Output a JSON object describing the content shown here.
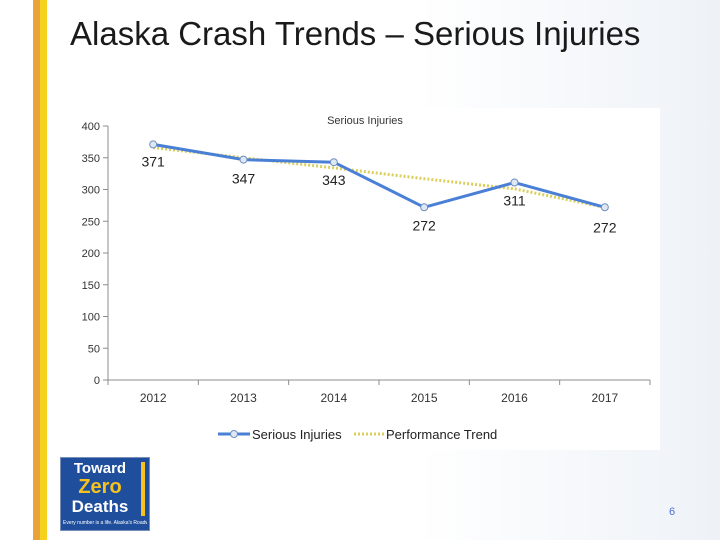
{
  "slide": {
    "title": "Alaska Crash Trends – Serious Injuries",
    "page_number": "6"
  },
  "logo": {
    "line1": "Toward",
    "line2": "Zero",
    "line3": "Deaths",
    "tagline": "Every number is a life. Alaska's Roadways"
  },
  "colors": {
    "stripe_orange": "#e8a33a",
    "stripe_yellow": "#f6d21f",
    "series_line": "#4a7fd6",
    "trend_line": "#d9cf5a",
    "logo_blue": "#1f4f9c"
  },
  "chart_data": {
    "type": "line",
    "title": "Serious Injuries",
    "categories": [
      "2012",
      "2013",
      "2014",
      "2015",
      "2016",
      "2017"
    ],
    "ylim": [
      0,
      400
    ],
    "yticks": [
      0,
      50,
      100,
      150,
      200,
      250,
      300,
      350,
      400
    ],
    "grid": false,
    "legend_position": "bottom",
    "series": [
      {
        "name": "Serious Injuries",
        "values": [
          371,
          347,
          343,
          272,
          311,
          272
        ],
        "data_labels": [
          "371",
          "347",
          "343",
          "272",
          "311",
          "272"
        ],
        "style": "solid with circle markers",
        "color": "#4a7fd6"
      },
      {
        "name": "Performance Trend",
        "values": [
          366,
          350,
          334,
          317,
          301,
          272
        ],
        "style": "dotted",
        "color": "#d9cf5a"
      }
    ]
  }
}
